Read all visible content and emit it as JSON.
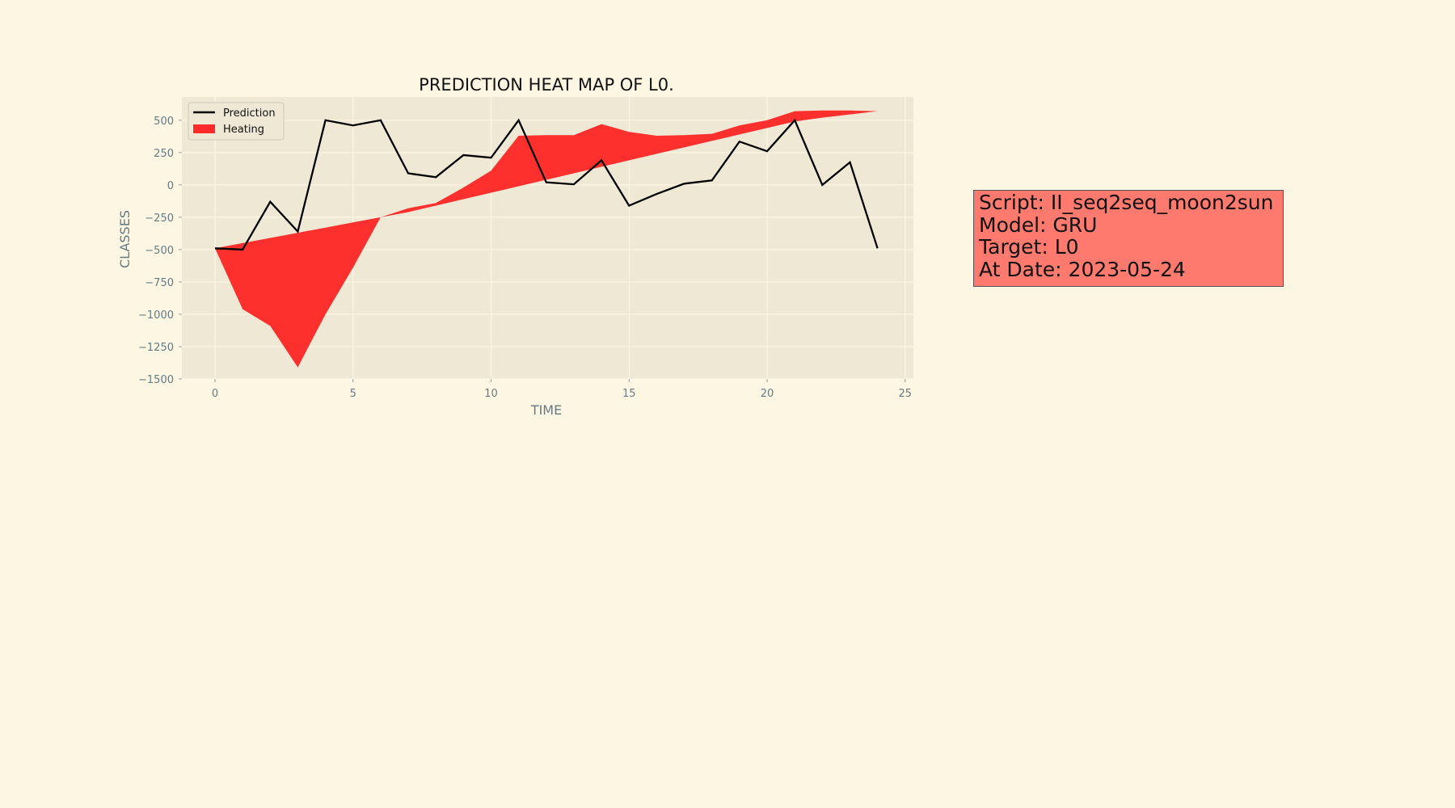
{
  "chart_data": {
    "type": "line",
    "title": "PREDICTION HEAT MAP OF L0.",
    "xlabel": "TIME",
    "ylabel": "CLASSES",
    "xlim": [
      -1.2,
      25.3
    ],
    "ylim": [
      -1500,
      680
    ],
    "xticks": [
      0,
      5,
      10,
      15,
      20,
      25
    ],
    "yticks": [
      500,
      250,
      0,
      -250,
      -500,
      -750,
      -1000,
      -1250,
      -1500
    ],
    "ytick_labels": [
      "500",
      "250",
      "0",
      "−250",
      "−500",
      "−750",
      "−1000",
      "−1250",
      "−1500"
    ],
    "grid": true,
    "legend_position": "upper-left",
    "x": [
      0,
      1,
      2,
      3,
      4,
      5,
      6,
      7,
      8,
      9,
      10,
      11,
      12,
      13,
      14,
      15,
      16,
      17,
      18,
      19,
      20,
      21,
      22,
      23,
      24
    ],
    "series": [
      {
        "name": "Prediction",
        "kind": "line",
        "color": "#000000",
        "values": [
          -490,
          -500,
          -130,
          -360,
          500,
          460,
          500,
          90,
          60,
          230,
          210,
          500,
          20,
          5,
          190,
          -160,
          -70,
          10,
          35,
          335,
          260,
          500,
          0,
          175,
          -490
        ]
      },
      {
        "name": "Heating",
        "kind": "area",
        "color": "#ff2020",
        "upper": [
          -490,
          -450,
          -410,
          -370,
          -330,
          -290,
          -250,
          -180,
          -140,
          -20,
          110,
          380,
          385,
          385,
          470,
          410,
          380,
          385,
          395,
          460,
          500,
          570,
          575,
          575,
          570
        ],
        "lower": [
          -490,
          -960,
          -1090,
          -1410,
          -1000,
          -640,
          -250,
          -210,
          -160,
          -110,
          -60,
          -10,
          40,
          90,
          140,
          190,
          240,
          290,
          340,
          390,
          440,
          490,
          520,
          545,
          570
        ]
      }
    ]
  },
  "info_box": {
    "line1": "Script: II_seq2seq_moon2sun",
    "line2": "Model: GRU",
    "line3": "Target: L0",
    "line4": "At Date: 2023-05-24",
    "background": "#ff7a6e"
  }
}
